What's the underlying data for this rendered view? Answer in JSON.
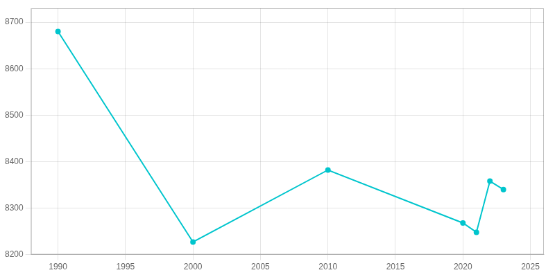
{
  "chart_data": {
    "type": "line",
    "x": [
      1990,
      2000,
      2010,
      2020,
      2021,
      2022,
      2023
    ],
    "values": [
      8680,
      8227,
      8382,
      8268,
      8248,
      8358,
      8340
    ],
    "color": "#00C5CD",
    "marker": "circle",
    "xlim": [
      1988,
      2026
    ],
    "ylim": [
      8200,
      8730
    ],
    "xticks": [
      1990,
      1995,
      2000,
      2005,
      2010,
      2015,
      2020,
      2025
    ],
    "yticks": [
      8200,
      8300,
      8400,
      8500,
      8600,
      8700
    ],
    "grid": true
  }
}
